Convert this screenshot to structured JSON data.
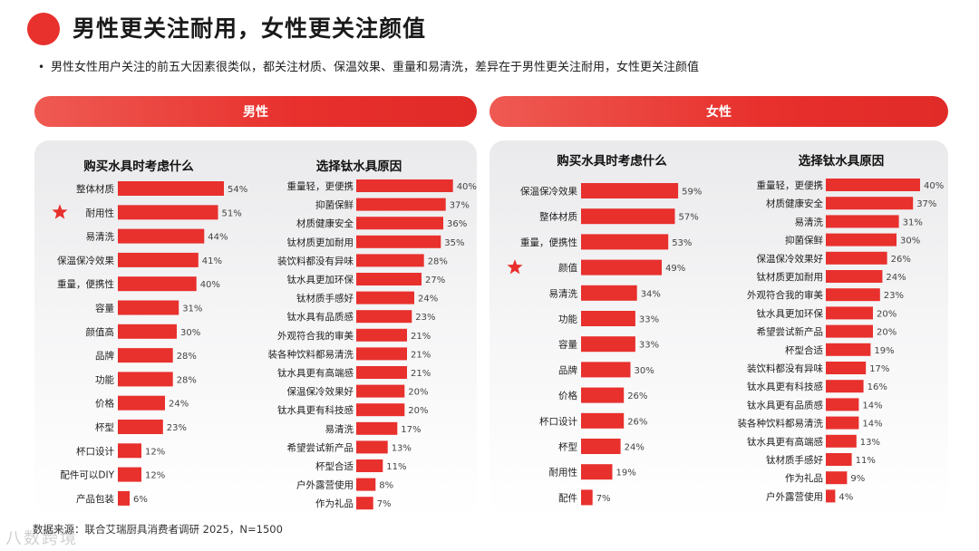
{
  "header": {
    "title": "男性更关注耐用，女性更关注颜值",
    "bullet": "男性女性用户关注的前五大因素很类似，都关注材质、保温效果、重量和易清洗，差异在于男性更关注耐用，女性更关注颜值"
  },
  "panels": {
    "male": {
      "label": "男性"
    },
    "female": {
      "label": "女性"
    }
  },
  "footer": {
    "source": "数据来源：",
    "source_rest": "联合艾瑞厨具消费者调研 2025，N=1500",
    "watermark": "八数跨境"
  },
  "colors": {
    "accent": "#e8302d",
    "star": "#e8302d"
  },
  "chart_data": [
    {
      "id": "male-factors",
      "type": "bar",
      "orientation": "horizontal",
      "title": "购买水具时考虑什么",
      "categories": [
        "整体材质",
        "耐用性",
        "易清洗",
        "保温保冷效果",
        "重量，便携性",
        "容量",
        "颜值高",
        "品牌",
        "功能",
        "价格",
        "杯型",
        "杯口设计",
        "配件可以DIY",
        "产品包装"
      ],
      "values": [
        54,
        51,
        44,
        41,
        40,
        31,
        30,
        28,
        28,
        24,
        23,
        12,
        12,
        6
      ],
      "value_labels": [
        "54%",
        "51%",
        "44%",
        "41%",
        "40%",
        "31%",
        "30%",
        "28%",
        "28%",
        "24%",
        "23%",
        "12%",
        "12%",
        "6%"
      ],
      "highlight": "耐用性",
      "xlim": [
        0,
        60
      ]
    },
    {
      "id": "male-reasons",
      "type": "bar",
      "orientation": "horizontal",
      "title": "选择钛水具原因",
      "categories": [
        "重量轻，更便携",
        "抑菌保鲜",
        "材质健康安全",
        "钛材质更加耐用",
        "装饮料都没有异味",
        "钛水具更加环保",
        "钛材质手感好",
        "钛水具有品质感",
        "外观符合我的审美",
        "装各种饮料都易清洗",
        "钛水具更有高端感",
        "保温保冷效果好",
        "钛水具更有科技感",
        "易清洗",
        "希望尝试新产品",
        "杯型合适",
        "户外露营使用",
        "作为礼品"
      ],
      "values": [
        40,
        37,
        36,
        35,
        28,
        27,
        24,
        23,
        21,
        21,
        21,
        20,
        20,
        17,
        13,
        11,
        8,
        7
      ],
      "value_labels": [
        "40%",
        "37%",
        "36%",
        "35%",
        "28%",
        "27%",
        "24%",
        "23%",
        "21%",
        "21%",
        "21%",
        "20%",
        "20%",
        "17%",
        "13%",
        "11%",
        "8%",
        "7%"
      ],
      "xlim": [
        0,
        45
      ]
    },
    {
      "id": "female-factors",
      "type": "bar",
      "orientation": "horizontal",
      "title": "购买水具时考虑什么",
      "categories": [
        "保温保冷效果",
        "整体材质",
        "重量，便携性",
        "颜值",
        "易清洗",
        "功能",
        "容量",
        "品牌",
        "价格",
        "杯口设计",
        "杯型",
        "耐用性",
        "配件"
      ],
      "values": [
        59,
        57,
        53,
        49,
        34,
        33,
        33,
        30,
        26,
        26,
        24,
        19,
        7
      ],
      "value_labels": [
        "59%",
        "57%",
        "53%",
        "49%",
        "34%",
        "33%",
        "33%",
        "30%",
        "26%",
        "26%",
        "24%",
        "19%",
        "7%"
      ],
      "highlight": "颜值",
      "xlim": [
        0,
        65
      ]
    },
    {
      "id": "female-reasons",
      "type": "bar",
      "orientation": "horizontal",
      "title": "选择钛水具原因",
      "categories": [
        "重量轻，更便携",
        "材质健康安全",
        "易清洗",
        "抑菌保鲜",
        "保温保冷效果好",
        "钛材质更加耐用",
        "外观符合我的审美",
        "钛水具更加环保",
        "希望尝试新产品",
        "杯型合适",
        "装饮料都没有异味",
        "钛水具更有科技感",
        "钛水具更有品质感",
        "装各种饮料都易清洗",
        "钛水具更有高端感",
        "钛材质手感好",
        "作为礼品",
        "户外露营使用"
      ],
      "values": [
        40,
        37,
        31,
        30,
        26,
        24,
        23,
        20,
        20,
        19,
        17,
        16,
        14,
        14,
        13,
        11,
        9,
        4
      ],
      "value_labels": [
        "40%",
        "37%",
        "31%",
        "30%",
        "26%",
        "24%",
        "23%",
        "20%",
        "20%",
        "19%",
        "17%",
        "16%",
        "14%",
        "14%",
        "13%",
        "11%",
        "9%",
        "4%"
      ],
      "xlim": [
        0,
        45
      ]
    }
  ]
}
